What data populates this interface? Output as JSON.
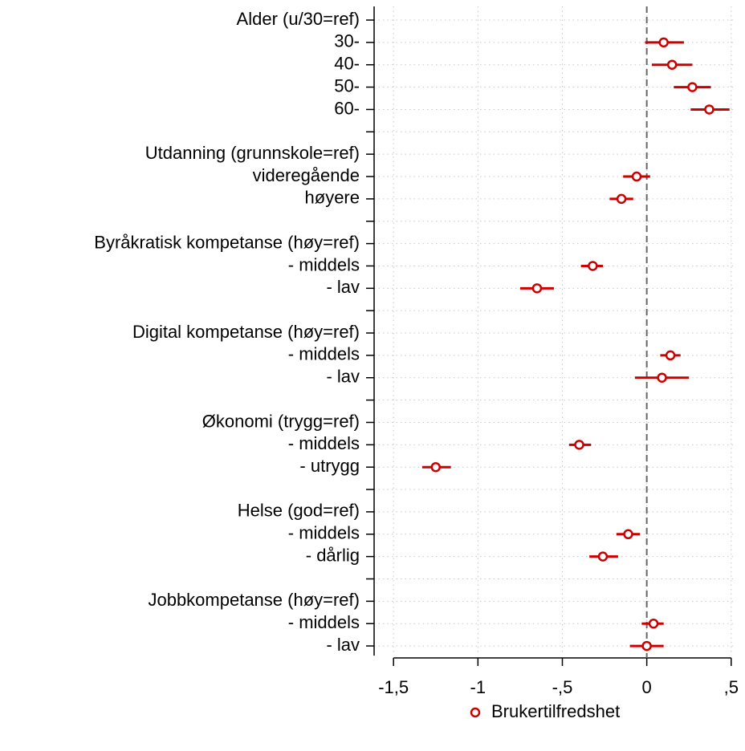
{
  "chart_data": {
    "type": "coefplot",
    "categories": [
      "Alder (u/30=ref)",
      "30-",
      "40-",
      "50-",
      "60-",
      null,
      "Utdanning (grunnskole=ref)",
      "videregående",
      "høyere",
      null,
      "Byråkratisk kompetanse (høy=ref)",
      "- middels",
      "- lav",
      null,
      "Digital kompetanse (høy=ref)",
      "- middels",
      "- lav",
      null,
      "Økonomi (trygg=ref)",
      "- middels",
      "- utrygg",
      null,
      "Helse (god=ref)",
      "- middels",
      "- dårlig",
      null,
      "Jobbkompetanse (høy=ref)",
      "- middels",
      "- lav"
    ],
    "series": [
      {
        "name": "Brukertilfredshet",
        "color": "#cc0000",
        "values": [
          null,
          0.1,
          0.15,
          0.27,
          0.37,
          null,
          null,
          -0.06,
          -0.15,
          null,
          null,
          -0.32,
          -0.65,
          null,
          null,
          0.14,
          0.09,
          null,
          null,
          -0.4,
          -1.25,
          null,
          null,
          -0.11,
          -0.26,
          null,
          null,
          0.04,
          0.0
        ],
        "lower": [
          null,
          -0.01,
          0.03,
          0.16,
          0.26,
          null,
          null,
          -0.14,
          -0.22,
          null,
          null,
          -0.39,
          -0.75,
          null,
          null,
          0.08,
          -0.07,
          null,
          null,
          -0.46,
          -1.33,
          null,
          null,
          -0.18,
          -0.34,
          null,
          null,
          -0.03,
          -0.1
        ],
        "upper": [
          null,
          0.22,
          0.27,
          0.38,
          0.49,
          null,
          null,
          0.02,
          -0.08,
          null,
          null,
          -0.26,
          -0.55,
          null,
          null,
          0.2,
          0.25,
          null,
          null,
          -0.33,
          -1.16,
          null,
          null,
          -0.04,
          -0.17,
          null,
          null,
          0.1,
          0.1
        ]
      }
    ],
    "xlim": [
      -1.615,
      0.52
    ],
    "xticks": [
      {
        "value": -1.5,
        "label": "-1,5"
      },
      -1,
      {
        "value": -0.5,
        "label": "-,5"
      },
      0,
      {
        "value": 0.5,
        "label": ",5"
      }
    ],
    "refline": 0,
    "grid": true,
    "legend": "bottom"
  }
}
